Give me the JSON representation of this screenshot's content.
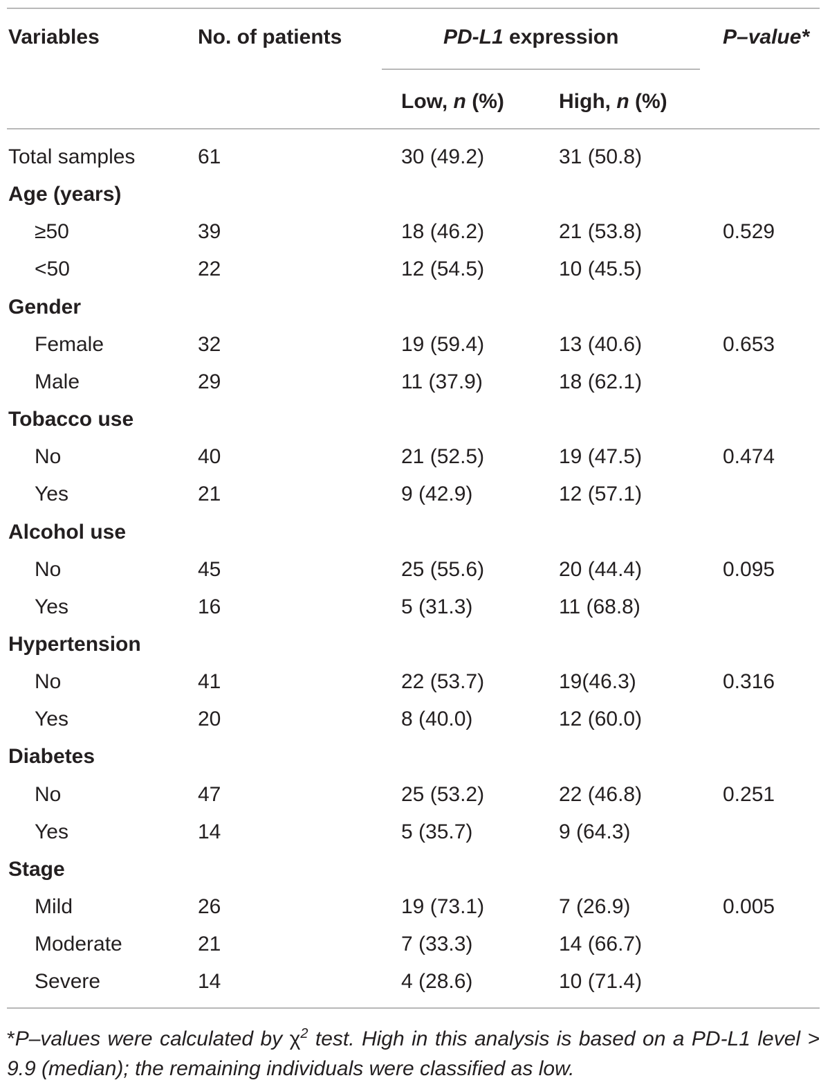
{
  "header": {
    "variables": "Variables",
    "no_patients": "No. of patients",
    "expression_gene": "PD-L1",
    "expression_suffix": " expression",
    "pvalue": "P–value*",
    "low_label": "Low, ",
    "high_label": "High, ",
    "n_symbol": "n",
    "pct_suffix": " (%)"
  },
  "rows": [
    {
      "type": "data",
      "label": "Total samples",
      "indent": false,
      "n": "61",
      "low": "30 (49.2)",
      "high": "31 (50.8)",
      "p": ""
    },
    {
      "type": "group",
      "label": "Age (years)"
    },
    {
      "type": "data",
      "label": "≥50",
      "indent": true,
      "n": "39",
      "low": "18 (46.2)",
      "high": "21 (53.8)",
      "p": "0.529"
    },
    {
      "type": "data",
      "label": "<50",
      "indent": true,
      "n": "22",
      "low": "12 (54.5)",
      "high": "10 (45.5)",
      "p": ""
    },
    {
      "type": "group",
      "label": "Gender"
    },
    {
      "type": "data",
      "label": "Female",
      "indent": true,
      "n": "32",
      "low": "19 (59.4)",
      "high": "13 (40.6)",
      "p": "0.653"
    },
    {
      "type": "data",
      "label": "Male",
      "indent": true,
      "n": "29",
      "low": "11 (37.9)",
      "high": "18 (62.1)",
      "p": ""
    },
    {
      "type": "group",
      "label": "Tobacco use"
    },
    {
      "type": "data",
      "label": "No",
      "indent": true,
      "n": "40",
      "low": "21 (52.5)",
      "high": "19 (47.5)",
      "p": "0.474"
    },
    {
      "type": "data",
      "label": "Yes",
      "indent": true,
      "n": "21",
      "low": "9 (42.9)",
      "high": "12 (57.1)",
      "p": ""
    },
    {
      "type": "group",
      "label": "Alcohol use"
    },
    {
      "type": "data",
      "label": "No",
      "indent": true,
      "n": "45",
      "low": "25 (55.6)",
      "high": "20 (44.4)",
      "p": "0.095"
    },
    {
      "type": "data",
      "label": "Yes",
      "indent": true,
      "n": "16",
      "low": "5 (31.3)",
      "high": "11 (68.8)",
      "p": ""
    },
    {
      "type": "group",
      "label": "Hypertension"
    },
    {
      "type": "data",
      "label": "No",
      "indent": true,
      "n": "41",
      "low": "22 (53.7)",
      "high": "19(46.3)",
      "p": "0.316"
    },
    {
      "type": "data",
      "label": "Yes",
      "indent": true,
      "n": "20",
      "low": "8 (40.0)",
      "high": "12 (60.0)",
      "p": ""
    },
    {
      "type": "group",
      "label": "Diabetes"
    },
    {
      "type": "data",
      "label": "No",
      "indent": true,
      "n": "47",
      "low": "25 (53.2)",
      "high": "22 (46.8)",
      "p": "0.251"
    },
    {
      "type": "data",
      "label": "Yes",
      "indent": true,
      "n": "14",
      "low": "5 (35.7)",
      "high": "9 (64.3)",
      "p": ""
    },
    {
      "type": "group",
      "label": "Stage"
    },
    {
      "type": "data",
      "label": "Mild",
      "indent": true,
      "n": "26",
      "low": "19 (73.1)",
      "high": "7 (26.9)",
      "p": "0.005"
    },
    {
      "type": "data",
      "label": "Moderate",
      "indent": true,
      "n": "21",
      "low": "7 (33.3)",
      "high": "14 (66.7)",
      "p": ""
    },
    {
      "type": "data",
      "label": "Severe",
      "indent": true,
      "n": "14",
      "low": "4 (28.6)",
      "high": "10 (71.4)",
      "p": ""
    }
  ],
  "footnote": {
    "star": "*",
    "part1": "P–values were calculated by ",
    "chi": "χ",
    "sup": "2",
    "part2": " test. High in this analysis is based on a PD-L1 level > 9.9 (median); the remaining individuals were classified as low."
  }
}
